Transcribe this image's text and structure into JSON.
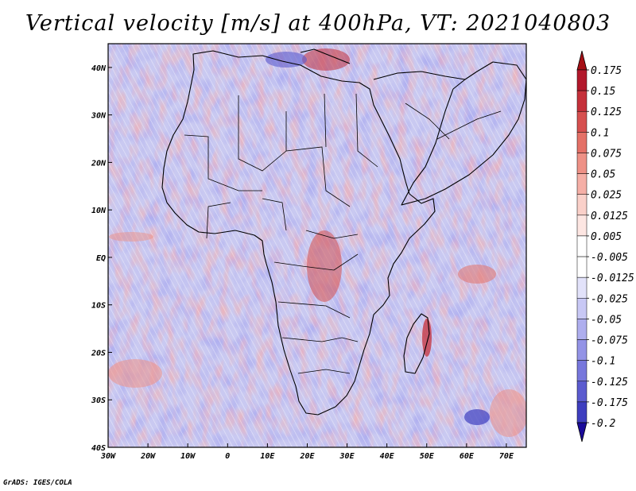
{
  "title": "Vertical velocity [m/s] at 400hPa, VT: 2021040803",
  "credit": "GrADS: IGES/COLA",
  "map": {
    "lon_range": [
      -30,
      75
    ],
    "lat_range": [
      -40,
      45
    ],
    "lat_ticks": [
      {
        "value": 40,
        "label": "40N"
      },
      {
        "value": 30,
        "label": "30N"
      },
      {
        "value": 20,
        "label": "20N"
      },
      {
        "value": 10,
        "label": "10N"
      },
      {
        "value": 0,
        "label": "EQ"
      },
      {
        "value": -10,
        "label": "10S"
      },
      {
        "value": -20,
        "label": "20S"
      },
      {
        "value": -30,
        "label": "30S"
      },
      {
        "value": -40,
        "label": "40S"
      }
    ],
    "lon_ticks": [
      {
        "value": -30,
        "label": "30W"
      },
      {
        "value": -20,
        "label": "20W"
      },
      {
        "value": -10,
        "label": "10W"
      },
      {
        "value": 0,
        "label": "0"
      },
      {
        "value": 10,
        "label": "10E"
      },
      {
        "value": 20,
        "label": "20E"
      },
      {
        "value": 30,
        "label": "30E"
      },
      {
        "value": 40,
        "label": "40E"
      },
      {
        "value": 50,
        "label": "50E"
      },
      {
        "value": 60,
        "label": "60E"
      },
      {
        "value": 70,
        "label": "70E"
      }
    ]
  },
  "colorbar": {
    "levels": [
      {
        "label": "0.175",
        "color": "#b2182b"
      },
      {
        "label": "0.15",
        "color": "#c5303a"
      },
      {
        "label": "0.125",
        "color": "#d6504f"
      },
      {
        "label": "0.1",
        "color": "#e47167"
      },
      {
        "label": "0.075",
        "color": "#ee9186"
      },
      {
        "label": "0.05",
        "color": "#f5afa6"
      },
      {
        "label": "0.025",
        "color": "#fad0c9"
      },
      {
        "label": "0.0125",
        "color": "#fde6e2"
      },
      {
        "label": "0.005",
        "color": "#ffffff"
      },
      {
        "label": "-0.005",
        "color": "#ffffff"
      },
      {
        "label": "-0.0125",
        "color": "#e2e2fa"
      },
      {
        "label": "-0.025",
        "color": "#c8c8f5"
      },
      {
        "label": "-0.05",
        "color": "#aeaeee"
      },
      {
        "label": "-0.075",
        "color": "#9393e6"
      },
      {
        "label": "-0.1",
        "color": "#7777dc"
      },
      {
        "label": "-0.125",
        "color": "#5b5bcf"
      },
      {
        "label": "-0.175",
        "color": "#3e3ebf"
      },
      {
        "label": "-0.2",
        "color": "#2020a8"
      }
    ],
    "top_color": "#a50f15",
    "bottom_color": "#1a0a9a"
  }
}
